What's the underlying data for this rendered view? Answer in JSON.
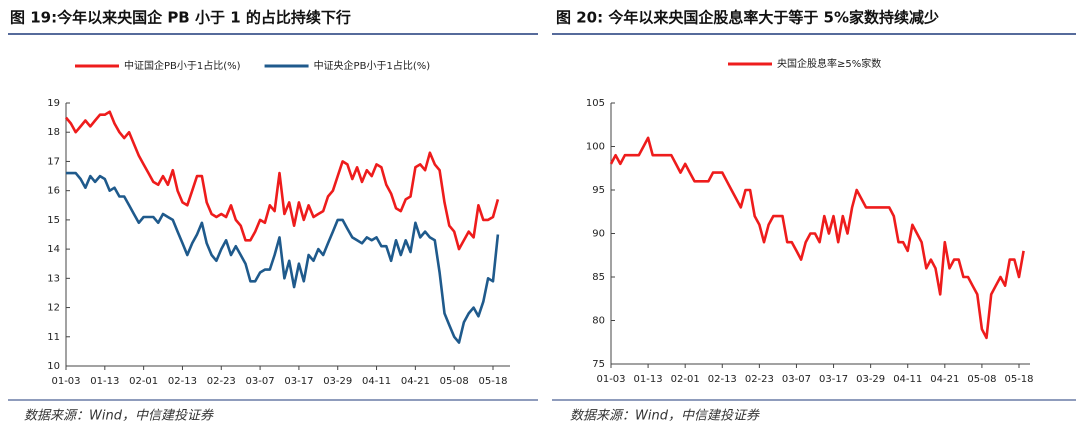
{
  "chart_data": [
    {
      "type": "line",
      "title": "图 19:今年以来央国企 PB 小于 1 的占比持续下行",
      "source": "数据来源：Wind，中信建投证券",
      "categories": [
        "01-03",
        null,
        null,
        null,
        null,
        null,
        null,
        null,
        "01-13",
        null,
        null,
        null,
        null,
        null,
        null,
        null,
        "02-01",
        null,
        null,
        null,
        null,
        null,
        null,
        null,
        "02-13",
        null,
        null,
        null,
        null,
        null,
        null,
        null,
        "02-23",
        null,
        null,
        null,
        null,
        null,
        null,
        null,
        "03-07",
        null,
        null,
        null,
        null,
        null,
        null,
        null,
        "03-17",
        null,
        null,
        null,
        null,
        null,
        null,
        null,
        "03-29",
        null,
        null,
        null,
        null,
        null,
        null,
        null,
        "04-11",
        null,
        null,
        null,
        null,
        null,
        null,
        null,
        "04-21",
        null,
        null,
        null,
        null,
        null,
        null,
        null,
        "05-08",
        null,
        null,
        null,
        null,
        null,
        null,
        null,
        "05-18",
        null
      ],
      "ylim": [
        10,
        19
      ],
      "yticks": [
        10,
        11,
        12,
        13,
        14,
        15,
        16,
        17,
        18,
        19
      ],
      "series": [
        {
          "name": "中证国企PB小于1占比(%)",
          "color": "#ee1c1c",
          "values": [
            18.5,
            18.3,
            18.0,
            18.2,
            18.4,
            18.2,
            18.4,
            18.6,
            18.6,
            18.7,
            18.3,
            18.0,
            17.8,
            18.0,
            17.6,
            17.2,
            16.9,
            16.6,
            16.3,
            16.2,
            16.5,
            16.2,
            16.7,
            16.0,
            15.6,
            15.5,
            16.0,
            16.5,
            16.5,
            15.6,
            15.2,
            15.1,
            15.2,
            15.1,
            15.5,
            15.0,
            14.8,
            14.3,
            14.3,
            14.6,
            15.0,
            14.9,
            15.5,
            15.3,
            16.6,
            15.2,
            15.6,
            14.8,
            15.6,
            15.0,
            15.5,
            15.1,
            15.2,
            15.3,
            15.8,
            16.0,
            16.5,
            17.0,
            16.9,
            16.4,
            16.8,
            16.3,
            16.7,
            16.5,
            16.9,
            16.8,
            16.2,
            15.9,
            15.4,
            15.3,
            15.7,
            15.8,
            16.8,
            16.9,
            16.7,
            17.3,
            16.9,
            16.7,
            15.6,
            14.8,
            14.6,
            14.0,
            14.3,
            14.6,
            14.4,
            15.5,
            15.0,
            15.0,
            15.1,
            15.7
          ]
        },
        {
          "name": "中证央企PB小于1占比(%)",
          "color": "#1f5a8c",
          "values": [
            16.6,
            16.6,
            16.6,
            16.4,
            16.1,
            16.5,
            16.3,
            16.5,
            16.4,
            16.0,
            16.1,
            15.8,
            15.8,
            15.5,
            15.2,
            14.9,
            15.1,
            15.1,
            15.1,
            14.9,
            15.2,
            15.1,
            15.0,
            14.6,
            14.2,
            13.8,
            14.2,
            14.5,
            14.9,
            14.2,
            13.8,
            13.6,
            14.0,
            14.3,
            13.8,
            14.1,
            13.8,
            13.5,
            12.9,
            12.9,
            13.2,
            13.3,
            13.3,
            13.8,
            14.4,
            13.0,
            13.6,
            12.7,
            13.5,
            12.9,
            13.8,
            13.6,
            14.0,
            13.8,
            14.2,
            14.6,
            15.0,
            15.0,
            14.7,
            14.4,
            14.3,
            14.2,
            14.4,
            14.3,
            14.4,
            14.1,
            14.1,
            13.6,
            14.3,
            13.8,
            14.3,
            13.9,
            14.9,
            14.4,
            14.6,
            14.4,
            14.3,
            13.2,
            11.8,
            11.4,
            11.0,
            10.8,
            11.5,
            11.8,
            12.0,
            11.7,
            12.2,
            13.0,
            12.9,
            14.5
          ]
        }
      ]
    },
    {
      "type": "line",
      "title": "图 20: 今年以来央国企股息率大于等于 5%家数持续减少",
      "source": "数据来源：Wind，中信建投证券",
      "categories": [
        "01-03",
        null,
        null,
        null,
        null,
        null,
        null,
        null,
        "01-13",
        null,
        null,
        null,
        null,
        null,
        null,
        null,
        "02-01",
        null,
        null,
        null,
        null,
        null,
        null,
        null,
        "02-13",
        null,
        null,
        null,
        null,
        null,
        null,
        null,
        "02-23",
        null,
        null,
        null,
        null,
        null,
        null,
        null,
        "03-07",
        null,
        null,
        null,
        null,
        null,
        null,
        null,
        "03-17",
        null,
        null,
        null,
        null,
        null,
        null,
        null,
        "03-29",
        null,
        null,
        null,
        null,
        null,
        null,
        null,
        "04-11",
        null,
        null,
        null,
        null,
        null,
        null,
        null,
        "04-21",
        null,
        null,
        null,
        null,
        null,
        null,
        null,
        "05-08",
        null,
        null,
        null,
        null,
        null,
        null,
        null,
        "05-18",
        null
      ],
      "ylim": [
        75,
        105
      ],
      "yticks": [
        75,
        80,
        85,
        90,
        95,
        100,
        105
      ],
      "series": [
        {
          "name": "央国企股息率≥5%家数",
          "color": "#ee1c1c",
          "values": [
            98,
            99,
            98,
            99,
            99,
            99,
            99,
            100,
            101,
            99,
            99,
            99,
            99,
            99,
            98,
            97,
            98,
            97,
            96,
            96,
            96,
            96,
            97,
            97,
            97,
            96,
            95,
            94,
            93,
            95,
            95,
            92,
            91,
            89,
            91,
            92,
            92,
            92,
            89,
            89,
            88,
            87,
            89,
            90,
            90,
            89,
            92,
            90,
            92,
            89,
            92,
            90,
            93,
            95,
            94,
            93,
            93,
            93,
            93,
            93,
            93,
            92,
            89,
            89,
            88,
            91,
            90,
            89,
            86,
            87,
            86,
            83,
            89,
            86,
            87,
            87,
            85,
            85,
            84,
            83,
            79,
            78,
            83,
            84,
            85,
            84,
            87,
            87,
            85,
            88
          ]
        }
      ]
    }
  ]
}
